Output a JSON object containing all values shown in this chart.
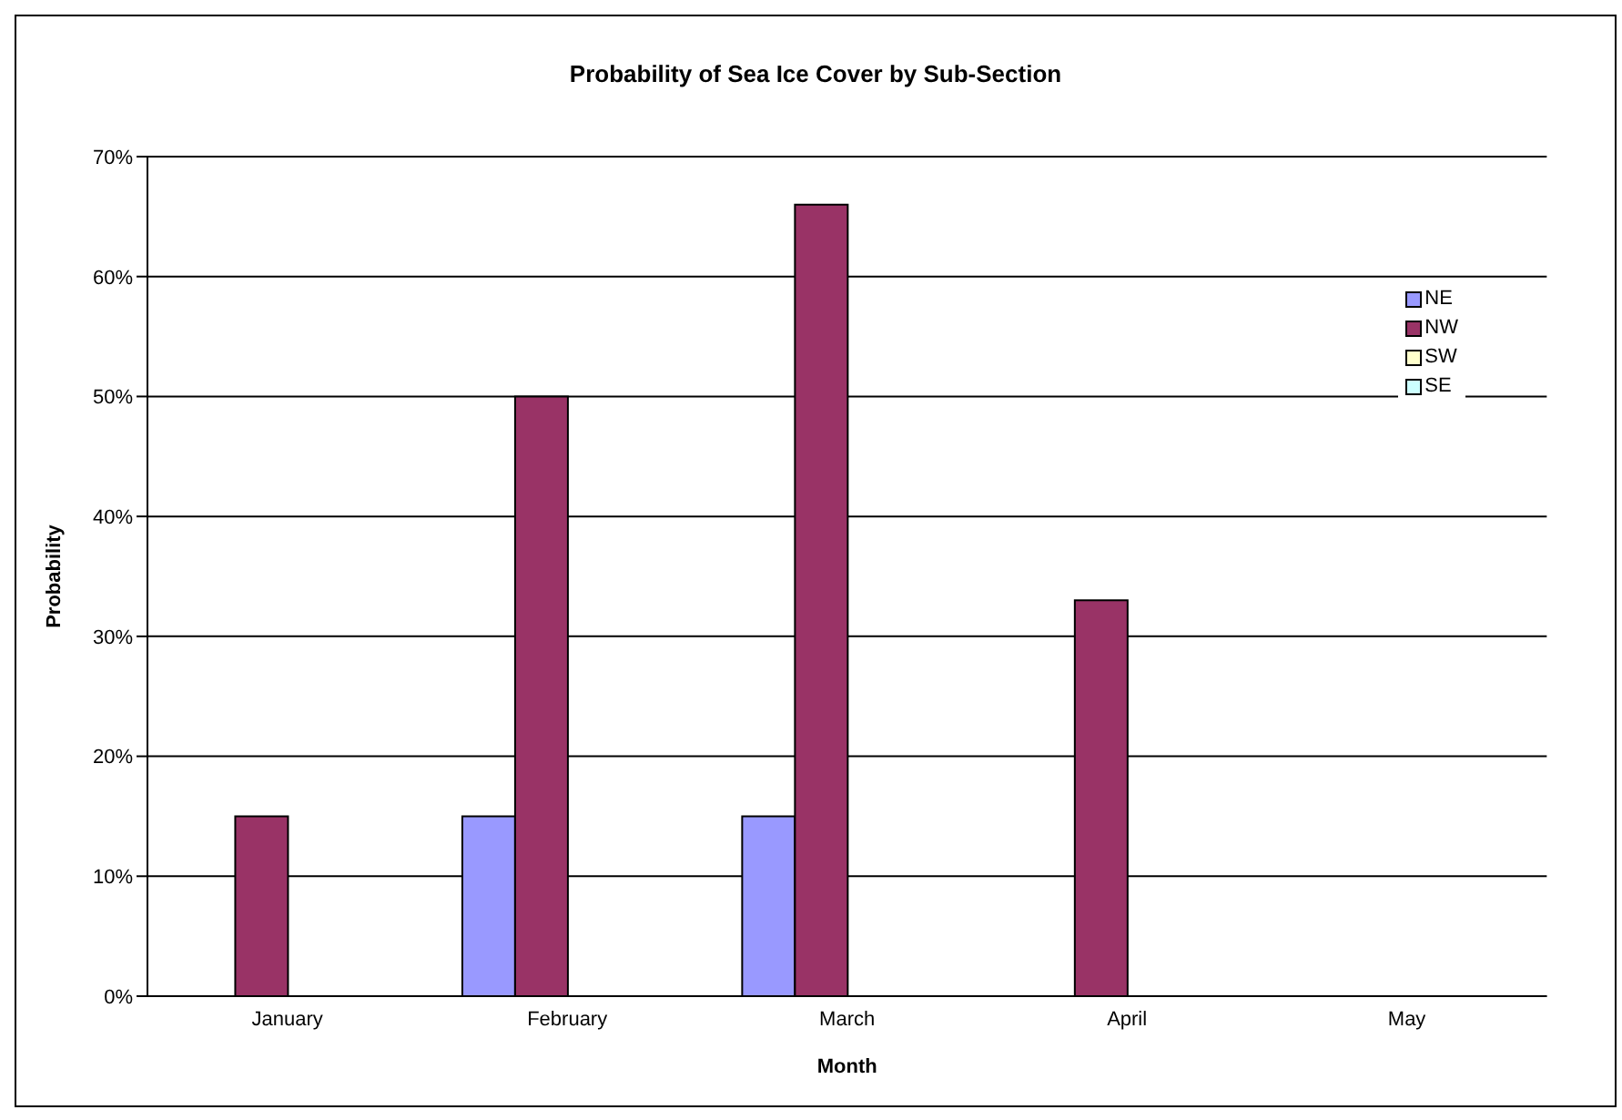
{
  "chart_data": {
    "type": "bar",
    "title": "Probability of Sea Ice Cover by Sub-Section",
    "xlabel": "Month",
    "ylabel": "Probability",
    "categories": [
      "January",
      "February",
      "March",
      "April",
      "May"
    ],
    "series": [
      {
        "name": "NE",
        "color": "#9999ff",
        "values": [
          0,
          15,
          15,
          0,
          0
        ]
      },
      {
        "name": "NW",
        "color": "#993366",
        "values": [
          15,
          50,
          66,
          33,
          0
        ]
      },
      {
        "name": "SW",
        "color": "#ffffcc",
        "values": [
          0,
          0,
          0,
          0,
          0
        ]
      },
      {
        "name": "SE",
        "color": "#ccffff",
        "values": [
          0,
          0,
          0,
          0,
          0
        ]
      }
    ],
    "ylim": [
      0,
      70
    ],
    "yticks": [
      {
        "value": 0,
        "label": "0%"
      },
      {
        "value": 10,
        "label": "10%"
      },
      {
        "value": 20,
        "label": "20%"
      },
      {
        "value": 30,
        "label": "30%"
      },
      {
        "value": 40,
        "label": "40%"
      },
      {
        "value": 50,
        "label": "50%"
      },
      {
        "value": 60,
        "label": "60%"
      },
      {
        "value": 70,
        "label": "70%"
      }
    ],
    "grid": "y",
    "legend": "right"
  }
}
